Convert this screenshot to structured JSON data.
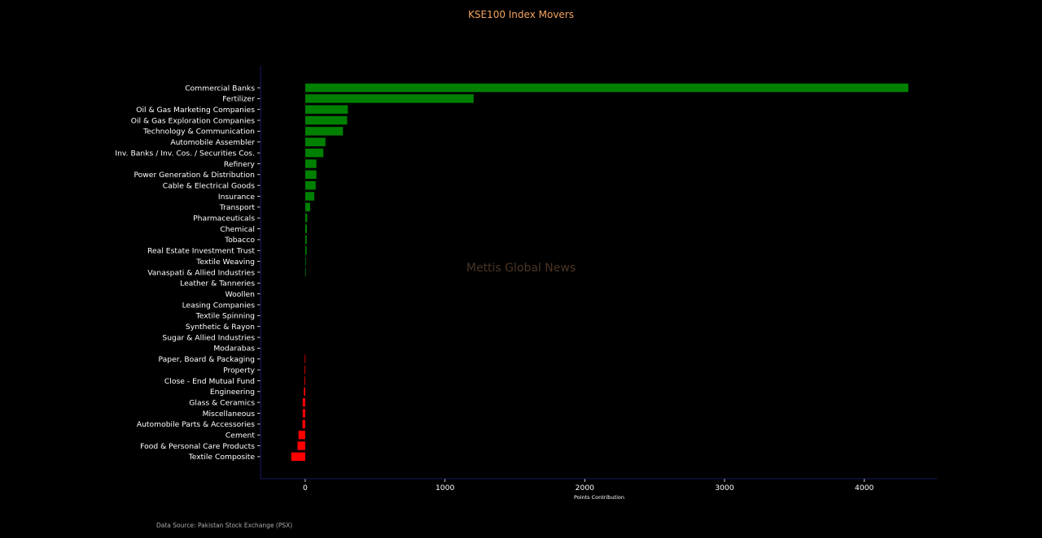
{
  "chart_data": {
    "type": "bar",
    "orientation": "horizontal",
    "title": "KSE100 Index Movers",
    "xlabel": "Points Contribution",
    "ylabel": "",
    "xlim": [
      -320,
      4520
    ],
    "xticks": [
      0,
      1000,
      2000,
      3000,
      4000
    ],
    "grid": false,
    "categories": [
      "Commercial Banks",
      "Fertilizer",
      "Oil & Gas Marketing Companies",
      "Oil & Gas Exploration Companies",
      "Technology & Communication",
      "Automobile Assembler",
      "Inv. Banks / Inv. Cos. / Securities Cos.",
      "Refinery",
      "Power Generation & Distribution",
      "Cable & Electrical Goods",
      "Insurance",
      "Transport",
      "Pharmaceuticals",
      "Chemical",
      "Tobacco",
      "Real Estate Investment Trust",
      "Textile Weaving",
      "Vanaspati & Allied Industries",
      "Leather & Tanneries",
      "Woollen",
      "Leasing Companies",
      "Textile Spinning",
      "Synthetic & Rayon",
      "Sugar & Allied Industries",
      "Modarabas",
      "Paper, Board & Packaging",
      "Property",
      "Close - End Mutual Fund",
      "Engineering",
      "Glass & Ceramics",
      "Miscellaneous",
      "Automobile Parts & Accessories",
      "Cement",
      "Food & Personal Care Products",
      "Textile Composite"
    ],
    "values": [
      4315,
      1205,
      305,
      300,
      270,
      145,
      130,
      80,
      80,
      75,
      65,
      35,
      14,
      12,
      11,
      10,
      3,
      2,
      0,
      0,
      0,
      0,
      0,
      0,
      0,
      -3,
      -4,
      -5,
      -10,
      -18,
      -18,
      -20,
      -48,
      -55,
      -100
    ],
    "colors": {
      "positive": "#008000",
      "negative": "#ff0000",
      "title": "#f4a460",
      "axis_spine": "#1a1a66",
      "watermark": "#4a3424",
      "source": "#aaaaaa"
    }
  },
  "watermark": "Mettis Global News",
  "source_note": "Data Source: Pakistan Stock Exchange (PSX)"
}
